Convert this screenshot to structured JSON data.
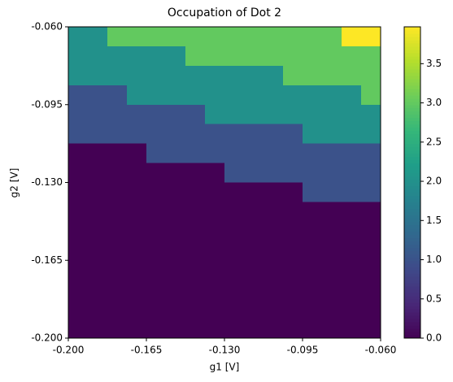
{
  "chart_data": {
    "type": "heatmap",
    "title": "Occupation of Dot 2",
    "x_label": "g1 [V]",
    "y_label": "g2 [V]",
    "colormap": "viridis",
    "xlim": [
      -0.2,
      -0.06
    ],
    "ylim": [
      -0.2,
      -0.06
    ],
    "xticks": [
      {
        "value": -0.2,
        "label": "-0.200"
      },
      {
        "value": -0.165,
        "label": "-0.165"
      },
      {
        "value": -0.13,
        "label": "-0.130"
      },
      {
        "value": -0.095,
        "label": "-0.095"
      },
      {
        "value": -0.06,
        "label": "-0.060"
      }
    ],
    "yticks": [
      {
        "value": -0.2,
        "label": "-0.200"
      },
      {
        "value": -0.165,
        "label": "-0.165"
      },
      {
        "value": -0.13,
        "label": "-0.130"
      },
      {
        "value": -0.095,
        "label": "-0.095"
      },
      {
        "value": -0.06,
        "label": "-0.060"
      }
    ],
    "clim": [
      0,
      3.97
    ],
    "cticks": [
      {
        "value": 0,
        "label": "0.0"
      },
      0.5,
      {
        "value": 1,
        "label": "1.0"
      },
      1.5,
      {
        "value": 2,
        "label": "2.0"
      },
      2.5,
      {
        "value": 3,
        "label": "3.0"
      },
      3.5
    ],
    "z": [
      [
        2,
        2,
        3,
        3,
        3,
        3,
        3,
        3,
        3,
        3,
        3,
        3,
        3,
        3,
        3.97,
        3.97
      ],
      [
        2,
        2,
        2,
        2,
        2,
        2,
        3,
        3,
        3,
        3,
        3,
        3,
        3,
        3,
        3,
        3
      ],
      [
        2,
        2,
        2,
        2,
        2,
        2,
        2,
        2,
        2,
        2,
        2,
        3,
        3,
        3,
        3,
        3
      ],
      [
        1,
        1,
        1,
        2,
        2,
        2,
        2,
        2,
        2,
        2,
        2,
        2,
        2,
        2,
        2,
        3
      ],
      [
        1,
        1,
        1,
        1,
        1,
        1,
        1,
        2,
        2,
        2,
        2,
        2,
        2,
        2,
        2,
        2
      ],
      [
        1,
        1,
        1,
        1,
        1,
        1,
        1,
        1,
        1,
        1,
        1,
        1,
        2,
        2,
        2,
        2
      ],
      [
        0,
        0,
        0,
        0,
        1,
        1,
        1,
        1,
        1,
        1,
        1,
        1,
        1,
        1,
        1,
        1
      ],
      [
        0,
        0,
        0,
        0,
        0,
        0,
        0,
        0,
        1,
        1,
        1,
        1,
        1,
        1,
        1,
        1
      ],
      [
        0,
        0,
        0,
        0,
        0,
        0,
        0,
        0,
        0,
        0,
        0,
        0,
        1,
        1,
        1,
        1
      ],
      [
        0,
        0,
        0,
        0,
        0,
        0,
        0,
        0,
        0,
        0,
        0,
        0,
        0,
        0,
        0,
        0
      ],
      [
        0,
        0,
        0,
        0,
        0,
        0,
        0,
        0,
        0,
        0,
        0,
        0,
        0,
        0,
        0,
        0
      ],
      [
        0,
        0,
        0,
        0,
        0,
        0,
        0,
        0,
        0,
        0,
        0,
        0,
        0,
        0,
        0,
        0
      ],
      [
        0,
        0,
        0,
        0,
        0,
        0,
        0,
        0,
        0,
        0,
        0,
        0,
        0,
        0,
        0,
        0
      ],
      [
        0,
        0,
        0,
        0,
        0,
        0,
        0,
        0,
        0,
        0,
        0,
        0,
        0,
        0,
        0,
        0
      ],
      [
        0,
        0,
        0,
        0,
        0,
        0,
        0,
        0,
        0,
        0,
        0,
        0,
        0,
        0,
        0,
        0
      ],
      [
        0,
        0,
        0,
        0,
        0,
        0,
        0,
        0,
        0,
        0,
        0,
        0,
        0,
        0,
        0,
        0
      ]
    ]
  }
}
